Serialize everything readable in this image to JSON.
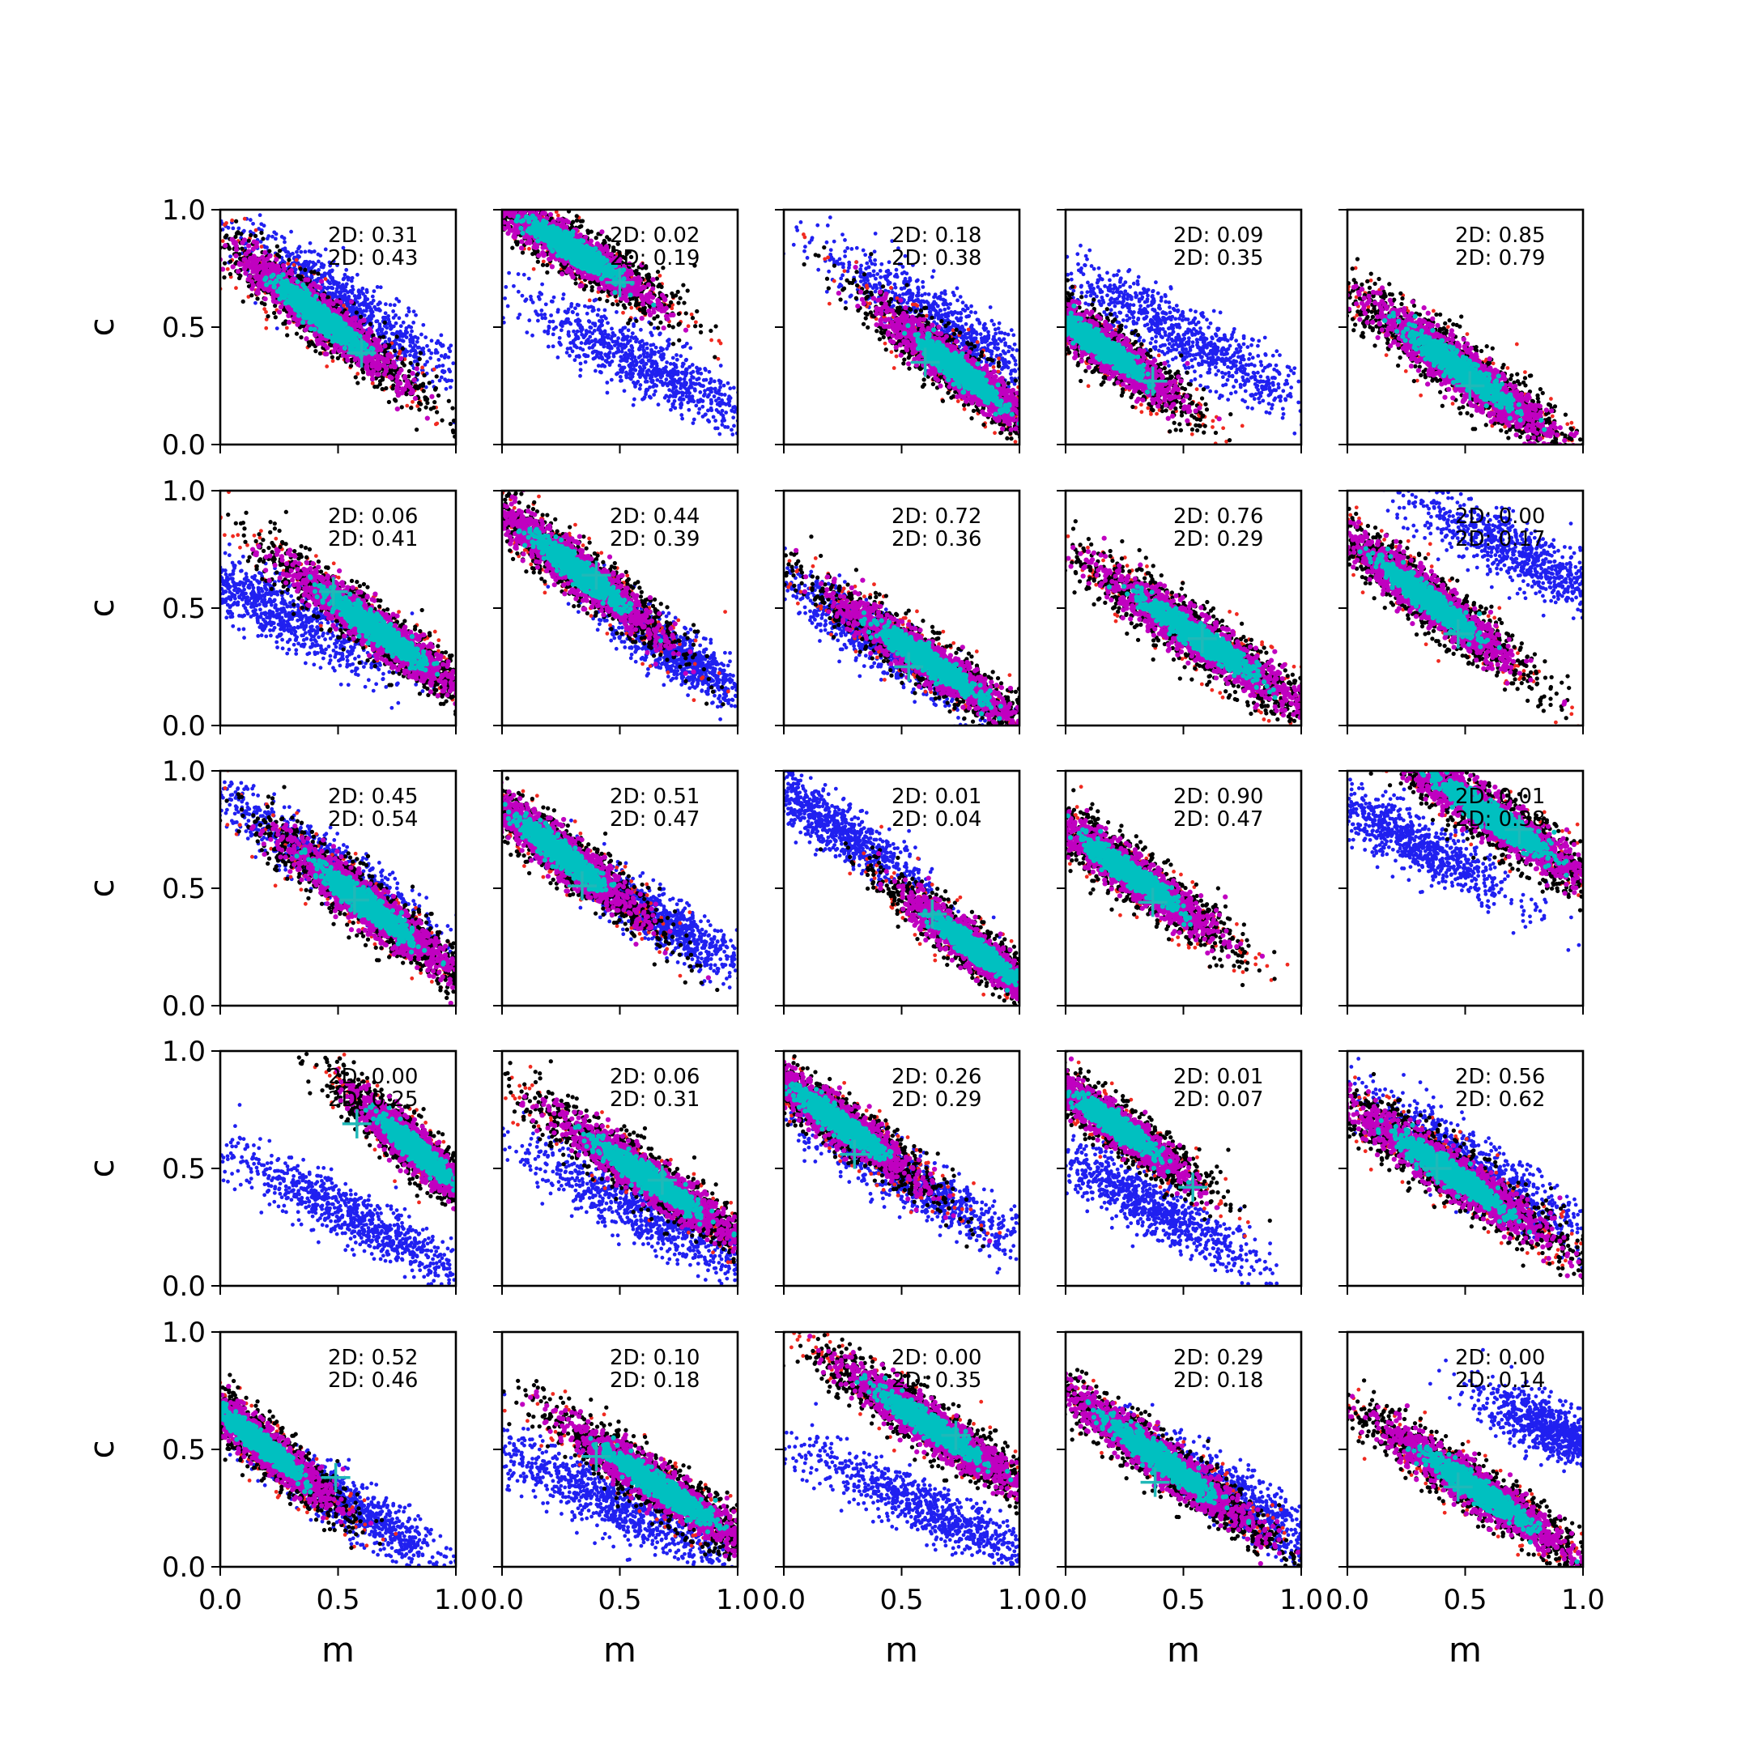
{
  "chart_data": {
    "type": "scatter",
    "layout": "5x5 grid of scatter panels",
    "xlabel": "m",
    "ylabel": "c",
    "xlim": [
      0.0,
      1.0
    ],
    "ylim": [
      0.0,
      1.0
    ],
    "xticks": [
      "0.0",
      "0.5",
      "1.0"
    ],
    "yticks": [
      "0.0",
      "0.5",
      "1.0"
    ],
    "grid": false,
    "colors": {
      "blue": "#2020f0",
      "red": "#f02a20",
      "black": "#000000",
      "magenta": "#c000c0",
      "cyan": "#00c0c0",
      "marker": "#20b8b8"
    },
    "panels": [
      {
        "ann": [
          "2D: 0.31",
          "2D: 0.43"
        ],
        "marker": [
          0.6,
          0.39
        ],
        "blob": {
          "cx": 0.42,
          "cy": 0.55,
          "s": 0.3,
          "w": 0.1,
          "ang": -38
        },
        "blue": {
          "cx": 0.52,
          "cy": 0.6,
          "s": 0.3,
          "w": 0.11,
          "ang": -34
        }
      },
      {
        "ann": [
          "2D: 0.02",
          "2D: 0.19"
        ],
        "marker": [
          0.5,
          0.69
        ],
        "blob": {
          "cx": 0.3,
          "cy": 0.83,
          "s": 0.27,
          "w": 0.1,
          "ang": -32
        },
        "blue": {
          "cx": 0.62,
          "cy": 0.33,
          "s": 0.3,
          "w": 0.11,
          "ang": -28
        }
      },
      {
        "ann": [
          "2D: 0.18",
          "2D: 0.38"
        ],
        "marker": [
          0.6,
          0.35
        ],
        "blob": {
          "cx": 0.75,
          "cy": 0.31,
          "s": 0.28,
          "w": 0.1,
          "ang": -38
        },
        "blue": {
          "cx": 0.7,
          "cy": 0.5,
          "s": 0.32,
          "w": 0.11,
          "ang": -32
        }
      },
      {
        "ann": [
          "2D: 0.09",
          "2D: 0.35"
        ],
        "marker": [
          0.37,
          0.27
        ],
        "blob": {
          "cx": 0.15,
          "cy": 0.42,
          "s": 0.27,
          "w": 0.1,
          "ang": -36
        },
        "blue": {
          "cx": 0.52,
          "cy": 0.45,
          "s": 0.34,
          "w": 0.11,
          "ang": -30
        }
      },
      {
        "ann": [
          "2D: 0.85",
          "2D: 0.79"
        ],
        "marker": [
          0.52,
          0.25
        ],
        "blob": {
          "cx": 0.48,
          "cy": 0.32,
          "s": 0.34,
          "w": 0.11,
          "ang": -36
        },
        "blue": null
      },
      {
        "ann": [
          "2D: 0.06",
          "2D: 0.41"
        ],
        "marker": [
          0.48,
          0.57
        ],
        "blob": {
          "cx": 0.66,
          "cy": 0.41,
          "s": 0.33,
          "w": 0.1,
          "ang": -36
        },
        "blue": {
          "cx": 0.22,
          "cy": 0.5,
          "s": 0.28,
          "w": 0.11,
          "ang": -28
        }
      },
      {
        "ann": [
          "2D: 0.44",
          "2D: 0.39"
        ],
        "marker": [
          0.4,
          0.64
        ],
        "blob": {
          "cx": 0.32,
          "cy": 0.66,
          "s": 0.3,
          "w": 0.1,
          "ang": -38
        },
        "blue": {
          "cx": 0.75,
          "cy": 0.3,
          "s": 0.2,
          "w": 0.09,
          "ang": -32
        }
      },
      {
        "ann": [
          "2D: 0.72",
          "2D: 0.36"
        ],
        "marker": [
          0.53,
          0.25
        ],
        "blob": {
          "cx": 0.62,
          "cy": 0.27,
          "s": 0.33,
          "w": 0.1,
          "ang": -34
        },
        "blue": {
          "cx": 0.4,
          "cy": 0.36,
          "s": 0.26,
          "w": 0.09,
          "ang": -34
        }
      },
      {
        "ann": [
          "2D: 0.76",
          "2D: 0.29"
        ],
        "marker": [
          0.58,
          0.37
        ],
        "blob": {
          "cx": 0.57,
          "cy": 0.37,
          "s": 0.37,
          "w": 0.11,
          "ang": -34
        },
        "blue": null
      },
      {
        "ann": [
          "2D: 0.00",
          "2D: 0.17"
        ],
        "marker": [
          0.47,
          0.39
        ],
        "blob": {
          "cx": 0.34,
          "cy": 0.54,
          "s": 0.31,
          "w": 0.1,
          "ang": -38
        },
        "blue": {
          "cx": 0.75,
          "cy": 0.72,
          "s": 0.3,
          "w": 0.11,
          "ang": -28
        }
      },
      {
        "ann": [
          "2D: 0.45",
          "2D: 0.54"
        ],
        "marker": [
          0.57,
          0.45
        ],
        "blob": {
          "cx": 0.62,
          "cy": 0.43,
          "s": 0.32,
          "w": 0.1,
          "ang": -38
        },
        "blue": {
          "cx": 0.45,
          "cy": 0.6,
          "s": 0.3,
          "w": 0.1,
          "ang": -34
        }
      },
      {
        "ann": [
          "2D: 0.51",
          "2D: 0.47"
        ],
        "marker": [
          0.34,
          0.51
        ],
        "blob": {
          "cx": 0.25,
          "cy": 0.65,
          "s": 0.29,
          "w": 0.1,
          "ang": -38
        },
        "blue": {
          "cx": 0.65,
          "cy": 0.38,
          "s": 0.22,
          "w": 0.09,
          "ang": -32
        }
      },
      {
        "ann": [
          "2D: 0.01",
          "2D: 0.04"
        ],
        "marker": [
          0.63,
          0.39
        ],
        "blob": {
          "cx": 0.8,
          "cy": 0.25,
          "s": 0.25,
          "w": 0.09,
          "ang": -38
        },
        "blue": {
          "cx": 0.2,
          "cy": 0.77,
          "s": 0.24,
          "w": 0.09,
          "ang": -34
        }
      },
      {
        "ann": [
          "2D: 0.90",
          "2D: 0.47"
        ],
        "marker": [
          0.37,
          0.44
        ],
        "blob": {
          "cx": 0.28,
          "cy": 0.56,
          "s": 0.3,
          "w": 0.1,
          "ang": -36
        },
        "blue": null
      },
      {
        "ann": [
          "2D: 0.01",
          "2D: 0.38"
        ],
        "marker": [
          0.73,
          0.75
        ],
        "blob": {
          "cx": 0.62,
          "cy": 0.8,
          "s": 0.36,
          "w": 0.11,
          "ang": -34
        },
        "blue": {
          "cx": 0.25,
          "cy": 0.71,
          "s": 0.26,
          "w": 0.1,
          "ang": -28
        }
      },
      {
        "ann": [
          "2D: 0.00",
          "2D: 0.25"
        ],
        "marker": [
          0.58,
          0.69
        ],
        "blob": {
          "cx": 0.83,
          "cy": 0.58,
          "s": 0.24,
          "w": 0.09,
          "ang": -42
        },
        "blue": {
          "cx": 0.55,
          "cy": 0.3,
          "s": 0.32,
          "w": 0.1,
          "ang": -28
        }
      },
      {
        "ann": [
          "2D: 0.06",
          "2D: 0.31"
        ],
        "marker": [
          0.68,
          0.45
        ],
        "blob": {
          "cx": 0.62,
          "cy": 0.46,
          "s": 0.34,
          "w": 0.1,
          "ang": -34
        },
        "blue": {
          "cx": 0.62,
          "cy": 0.3,
          "s": 0.32,
          "w": 0.11,
          "ang": -28
        }
      },
      {
        "ann": [
          "2D: 0.26",
          "2D: 0.29"
        ],
        "marker": [
          0.3,
          0.56
        ],
        "blob": {
          "cx": 0.23,
          "cy": 0.7,
          "s": 0.29,
          "w": 0.1,
          "ang": -36
        },
        "blue": {
          "cx": 0.55,
          "cy": 0.44,
          "s": 0.34,
          "w": 0.1,
          "ang": -30
        }
      },
      {
        "ann": [
          "2D: 0.01",
          "2D: 0.07"
        ],
        "marker": [
          0.54,
          0.42
        ],
        "blob": {
          "cx": 0.22,
          "cy": 0.68,
          "s": 0.25,
          "w": 0.09,
          "ang": -36
        },
        "blue": {
          "cx": 0.36,
          "cy": 0.34,
          "s": 0.28,
          "w": 0.1,
          "ang": -30
        }
      },
      {
        "ann": [
          "2D: 0.56",
          "2D: 0.62"
        ],
        "marker": [
          0.38,
          0.5
        ],
        "blob": {
          "cx": 0.44,
          "cy": 0.48,
          "s": 0.35,
          "w": 0.11,
          "ang": -34
        },
        "blue": {
          "cx": 0.55,
          "cy": 0.5,
          "s": 0.32,
          "w": 0.11,
          "ang": -32
        }
      },
      {
        "ann": [
          "2D: 0.52",
          "2D: 0.46"
        ],
        "marker": [
          0.49,
          0.38
        ],
        "blob": {
          "cx": 0.18,
          "cy": 0.52,
          "s": 0.26,
          "w": 0.09,
          "ang": -40
        },
        "blue": {
          "cx": 0.55,
          "cy": 0.26,
          "s": 0.26,
          "w": 0.09,
          "ang": -32
        }
      },
      {
        "ann": [
          "2D: 0.10",
          "2D: 0.18"
        ],
        "marker": [
          0.4,
          0.47
        ],
        "blob": {
          "cx": 0.67,
          "cy": 0.34,
          "s": 0.33,
          "w": 0.1,
          "ang": -34
        },
        "blue": {
          "cx": 0.45,
          "cy": 0.28,
          "s": 0.3,
          "w": 0.11,
          "ang": -26
        }
      },
      {
        "ann": [
          "2D: 0.00",
          "2D: 0.35"
        ],
        "marker": [
          0.73,
          0.56
        ],
        "blob": {
          "cx": 0.62,
          "cy": 0.6,
          "s": 0.32,
          "w": 0.1,
          "ang": -34
        },
        "blue": {
          "cx": 0.62,
          "cy": 0.24,
          "s": 0.32,
          "w": 0.1,
          "ang": -26
        }
      },
      {
        "ann": [
          "2D: 0.29",
          "2D: 0.18"
        ],
        "marker": [
          0.38,
          0.36
        ],
        "blob": {
          "cx": 0.4,
          "cy": 0.46,
          "s": 0.36,
          "w": 0.1,
          "ang": -36
        },
        "blue": {
          "cx": 0.75,
          "cy": 0.28,
          "s": 0.26,
          "w": 0.1,
          "ang": -34
        }
      },
      {
        "ann": [
          "2D: 0.00",
          "2D: 0.14"
        ],
        "marker": [
          0.47,
          0.34
        ],
        "blob": {
          "cx": 0.55,
          "cy": 0.33,
          "s": 0.34,
          "w": 0.1,
          "ang": -34
        },
        "blue": {
          "cx": 0.88,
          "cy": 0.58,
          "s": 0.18,
          "w": 0.1,
          "ang": -26
        }
      }
    ]
  }
}
